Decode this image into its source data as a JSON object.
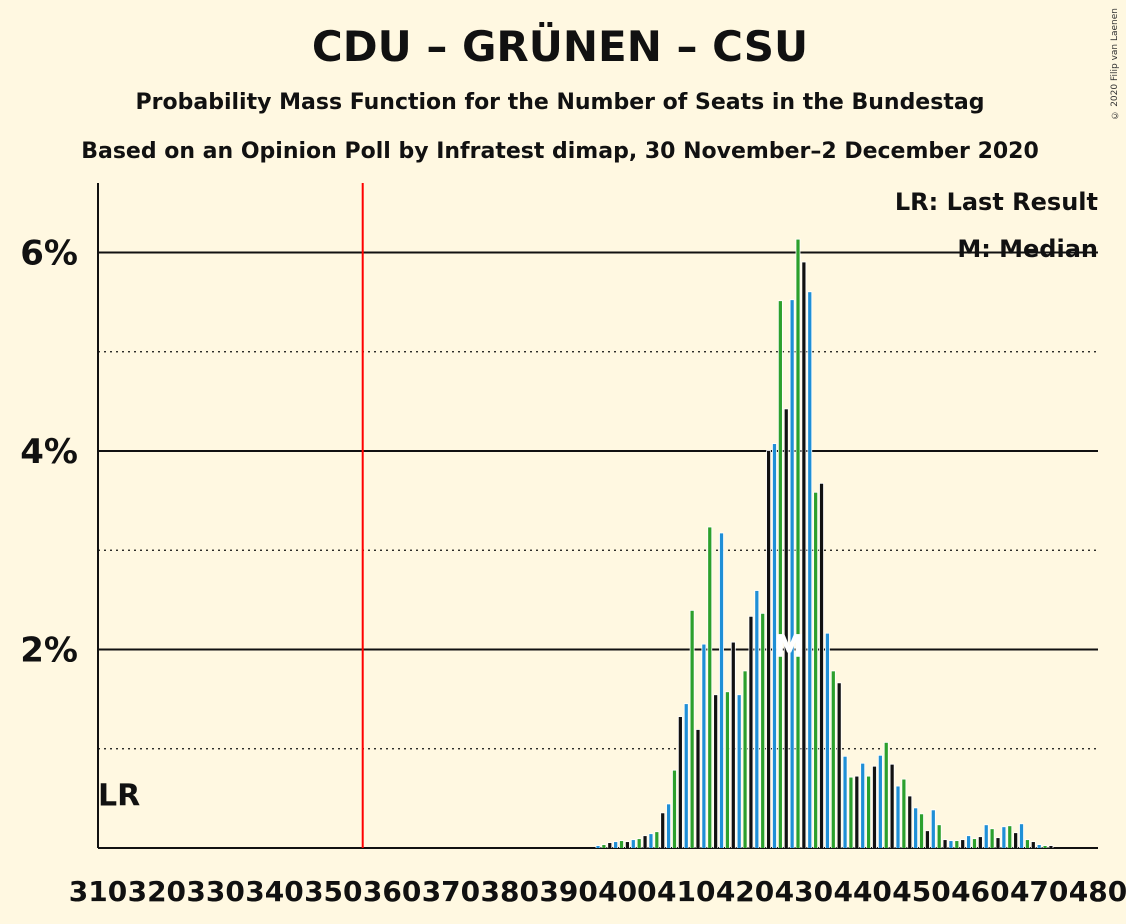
{
  "chart_data": {
    "type": "bar",
    "title": "CDU – GRÜNEN – CSU",
    "subtitle": "Probability Mass Function for the Number of Seats in the Bundestag",
    "subtitle2": "Based on an Opinion Poll by Infratest dimap, 30 November–2 December 2020",
    "copyright": "© 2020 Filip van Laenen",
    "legend_lr": "LR: Last Result",
    "legend_m": "M: Median",
    "lr_label": "LR",
    "median_label": "M",
    "majority_seat": 355,
    "median_seat": 427,
    "ylim": [
      0,
      6.7
    ],
    "yticks": [
      {
        "value": 2,
        "label": "2%"
      },
      {
        "value": 4,
        "label": "4%"
      },
      {
        "value": 6,
        "label": "6%"
      }
    ],
    "ydotted": [
      1,
      3,
      5
    ],
    "xlim": [
      310,
      480
    ],
    "xticks": [
      "310",
      "320",
      "330",
      "340",
      "350",
      "360",
      "370",
      "380",
      "390",
      "400",
      "410",
      "420",
      "430",
      "440",
      "450",
      "460",
      "470",
      "480"
    ],
    "colors": {
      "blue": "#1f8fd6",
      "green": "#2ca02c",
      "black": "#111111",
      "majority": "#ff0000",
      "bg": "#fff8e1"
    },
    "series": [
      {
        "seat": 395,
        "value": 0.02
      },
      {
        "seat": 396,
        "value": 0.03
      },
      {
        "seat": 397,
        "value": 0.05
      },
      {
        "seat": 398,
        "value": 0.06
      },
      {
        "seat": 399,
        "value": 0.07
      },
      {
        "seat": 400,
        "value": 0.06
      },
      {
        "seat": 401,
        "value": 0.08
      },
      {
        "seat": 402,
        "value": 0.09
      },
      {
        "seat": 403,
        "value": 0.12
      },
      {
        "seat": 404,
        "value": 0.14
      },
      {
        "seat": 405,
        "value": 0.16
      },
      {
        "seat": 406,
        "value": 0.35
      },
      {
        "seat": 407,
        "value": 0.44
      },
      {
        "seat": 408,
        "value": 0.78
      },
      {
        "seat": 409,
        "value": 1.32
      },
      {
        "seat": 410,
        "value": 1.45
      },
      {
        "seat": 411,
        "value": 2.39
      },
      {
        "seat": 412,
        "value": 1.19
      },
      {
        "seat": 413,
        "value": 2.05
      },
      {
        "seat": 414,
        "value": 3.23
      },
      {
        "seat": 415,
        "value": 1.54
      },
      {
        "seat": 416,
        "value": 3.17
      },
      {
        "seat": 417,
        "value": 1.57
      },
      {
        "seat": 418,
        "value": 2.07
      },
      {
        "seat": 419,
        "value": 1.54
      },
      {
        "seat": 420,
        "value": 1.78
      },
      {
        "seat": 421,
        "value": 2.33
      },
      {
        "seat": 422,
        "value": 2.59
      },
      {
        "seat": 423,
        "value": 2.36
      },
      {
        "seat": 424,
        "value": 4.0
      },
      {
        "seat": 425,
        "value": 4.07
      },
      {
        "seat": 426,
        "value": 5.51
      },
      {
        "seat": 427,
        "value": 4.42
      },
      {
        "seat": 428,
        "value": 5.52
      },
      {
        "seat": 429,
        "value": 6.13
      },
      {
        "seat": 430,
        "value": 5.9
      },
      {
        "seat": 431,
        "value": 5.6
      },
      {
        "seat": 432,
        "value": 3.58
      },
      {
        "seat": 433,
        "value": 3.67
      },
      {
        "seat": 434,
        "value": 2.16
      },
      {
        "seat": 435,
        "value": 1.78
      },
      {
        "seat": 436,
        "value": 1.66
      },
      {
        "seat": 437,
        "value": 0.92
      },
      {
        "seat": 438,
        "value": 0.71
      },
      {
        "seat": 439,
        "value": 0.72
      },
      {
        "seat": 440,
        "value": 0.85
      },
      {
        "seat": 441,
        "value": 0.72
      },
      {
        "seat": 442,
        "value": 0.82
      },
      {
        "seat": 443,
        "value": 0.93
      },
      {
        "seat": 444,
        "value": 1.06
      },
      {
        "seat": 445,
        "value": 0.84
      },
      {
        "seat": 446,
        "value": 0.62
      },
      {
        "seat": 447,
        "value": 0.69
      },
      {
        "seat": 448,
        "value": 0.52
      },
      {
        "seat": 449,
        "value": 0.4
      },
      {
        "seat": 450,
        "value": 0.34
      },
      {
        "seat": 451,
        "value": 0.17
      },
      {
        "seat": 452,
        "value": 0.38
      },
      {
        "seat": 453,
        "value": 0.23
      },
      {
        "seat": 454,
        "value": 0.08
      },
      {
        "seat": 455,
        "value": 0.07
      },
      {
        "seat": 456,
        "value": 0.07
      },
      {
        "seat": 457,
        "value": 0.08
      },
      {
        "seat": 458,
        "value": 0.12
      },
      {
        "seat": 459,
        "value": 0.09
      },
      {
        "seat": 460,
        "value": 0.11
      },
      {
        "seat": 461,
        "value": 0.23
      },
      {
        "seat": 462,
        "value": 0.19
      },
      {
        "seat": 463,
        "value": 0.1
      },
      {
        "seat": 464,
        "value": 0.21
      },
      {
        "seat": 465,
        "value": 0.22
      },
      {
        "seat": 466,
        "value": 0.15
      },
      {
        "seat": 467,
        "value": 0.24
      },
      {
        "seat": 468,
        "value": 0.08
      },
      {
        "seat": 469,
        "value": 0.06
      },
      {
        "seat": 470,
        "value": 0.03
      },
      {
        "seat": 471,
        "value": 0.02
      },
      {
        "seat": 472,
        "value": 0.02
      }
    ]
  }
}
